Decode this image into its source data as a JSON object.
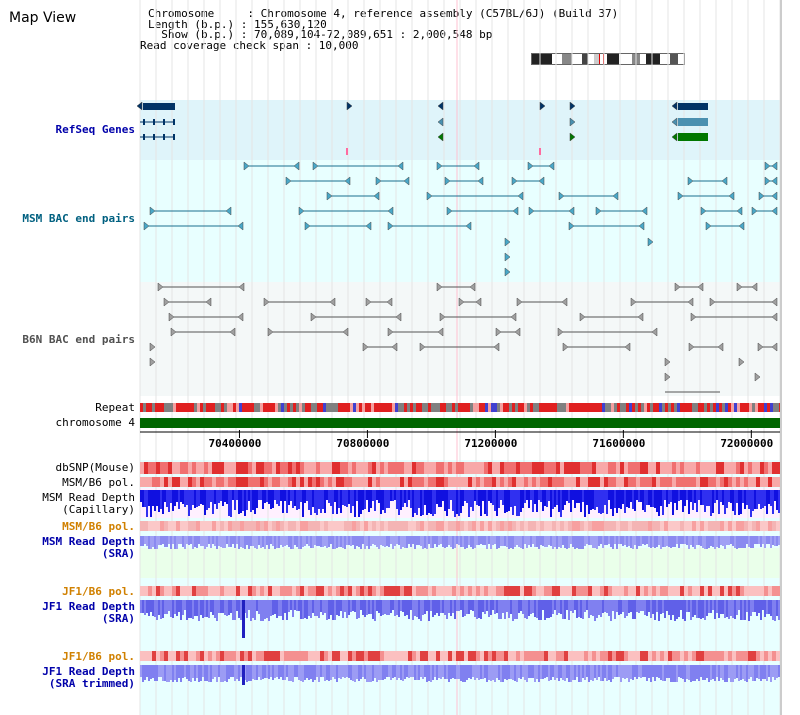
{
  "page": {
    "title": "Map View"
  },
  "info": {
    "lines": [
      "Chromosome     : Chromosome 4, reference assembly (C57BL/6J) (Build 37)",
      "Length (b.p.) : 155,630,120",
      "  Show (b.p.) : 70,089,104-72,089,651 : 2,000,548 bp",
      "Read coverage check span : 10,000"
    ]
  },
  "tracks": {
    "refseq": "RefSeq Genes",
    "msm_bac": "MSM BAC end pairs",
    "b6n_bac": "B6N BAC end pairs",
    "repeat": "Repeat",
    "chromosome": "chromosome 4",
    "dbsnp": "dbSNP(Mouse)",
    "msm_b6_pol_1": "MSM/B6 pol.",
    "msm_read_depth_cap_1": "MSM Read Depth",
    "msm_read_depth_cap_2": "(Capillary)",
    "msm_b6_pol_2": "MSM/B6 pol.",
    "msm_read_depth_sra_1": "MSM Read Depth",
    "msm_read_depth_sra_2": "(SRA)",
    "jf1_b6_pol_1": "JF1/B6 pol.",
    "jf1_read_depth_sra_1": "JF1 Read Depth",
    "jf1_read_depth_sra_2": "(SRA)",
    "jf1_b6_pol_2": "JF1/B6 pol.",
    "jf1_read_depth_trim_1": "JF1 Read Depth",
    "jf1_read_depth_trim_2": "(SRA trimmed)"
  },
  "axis": {
    "ticks": [
      "70400000",
      "70800000",
      "71200000",
      "71600000",
      "72000000"
    ],
    "tick_values": [
      70400000,
      70800000,
      71200000,
      71600000,
      72000000
    ],
    "range": [
      70089104,
      72089651
    ]
  },
  "colors": {
    "refseq_label": "#0000aa",
    "msm_label": "#006080",
    "b6n_label": "#505050",
    "orange_label": "#d08000",
    "blue_label": "#0000aa",
    "gene_dark": "#003366",
    "gene_teal": "#4a90b0",
    "gene_green": "#007700",
    "chromosome": "#006600",
    "refseq_bg": "#dff4fa",
    "light_bg": "#e8ffff",
    "grey_bg": "#f4f8f8",
    "depth_blue": "#2020e0",
    "depth_light": "#8080f0"
  }
}
